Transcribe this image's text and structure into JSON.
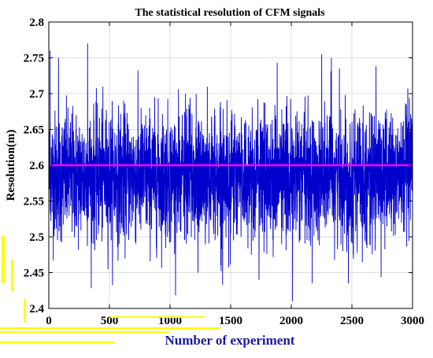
{
  "chart_data": {
    "type": "line",
    "title": "The statistical resolution of CFM signals",
    "xlabel": "Number of experiment",
    "ylabel": "Resolution(m)",
    "xlim": [
      0,
      3000
    ],
    "ylim": [
      2.4,
      2.8
    ],
    "xticks": [
      0,
      500,
      1000,
      1500,
      2000,
      2500,
      3000
    ],
    "xtick_labels": [
      "0",
      "500",
      "1000",
      "1500",
      "2000",
      "2500",
      "3000"
    ],
    "yticks": [
      2.4,
      2.45,
      2.5,
      2.55,
      2.6,
      2.65,
      2.7,
      2.75,
      2.8
    ],
    "ytick_labels": [
      "2.4",
      "2.45",
      "2.5",
      "2.55",
      "2.6",
      "2.65",
      "2.7",
      "2.75",
      "2.8"
    ],
    "grid": true,
    "series": [
      {
        "kind": "noise",
        "color": "#0000cc",
        "n_points": 3000,
        "mean": 2.585,
        "std": 0.045,
        "min": 2.41,
        "max": 2.77,
        "peaks": [
          {
            "x": 10,
            "y": 2.76
          },
          {
            "x": 80,
            "y": 2.75
          },
          {
            "x": 320,
            "y": 2.77
          },
          {
            "x": 1230,
            "y": 2.45
          },
          {
            "x": 2010,
            "y": 2.41
          },
          {
            "x": 2250,
            "y": 2.755
          },
          {
            "x": 2330,
            "y": 2.75
          },
          {
            "x": 2470,
            "y": 2.435
          }
        ]
      },
      {
        "kind": "constant",
        "color": "#ff00ff",
        "x": [
          0,
          3000
        ],
        "y": [
          2.6,
          2.6
        ]
      }
    ],
    "colors": {
      "axis": "#000000",
      "grid": "#dedede",
      "xlabel": "#1a1aa0",
      "highlight_marks": "#ffff00"
    }
  }
}
